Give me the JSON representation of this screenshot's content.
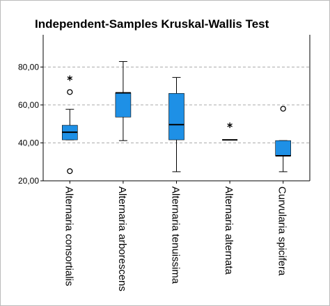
{
  "chart_data": {
    "type": "box",
    "title": "Independent-Samples Kruskal-Wallis Test",
    "categories": [
      "Alternaria consortialis",
      "Alternaria arborescens",
      "Alternaria tenuissima",
      "Alternaria alternata",
      "Curvularia spicifera"
    ],
    "boxes": [
      {
        "min": 41.6,
        "q1": 41.6,
        "median": 45.6,
        "q3": 49.3,
        "max": 57.7,
        "outliers": [
          66.8,
          25.1
        ],
        "extremes": [
          74.1
        ]
      },
      {
        "min": 41.2,
        "q1": 53.6,
        "median": 66.4,
        "q3": 66.4,
        "max": 82.9,
        "outliers": [],
        "extremes": []
      },
      {
        "min": 24.8,
        "q1": 41.6,
        "median": 49.6,
        "q3": 66.1,
        "max": 74.5,
        "outliers": [],
        "extremes": []
      },
      {
        "min": 41.6,
        "q1": 41.6,
        "median": 41.6,
        "q3": 41.6,
        "max": 41.6,
        "outliers": [],
        "extremes": [
          49.3
        ]
      },
      {
        "min": 24.8,
        "q1": 33.2,
        "median": 33.2,
        "q3": 41.2,
        "max": 41.2,
        "outliers": [
          58.0
        ],
        "extremes": []
      }
    ],
    "color": "#1e90e6",
    "ylim": [
      20,
      97
    ],
    "yticks": [
      {
        "value": 20,
        "label": "20,00"
      },
      {
        "value": 40,
        "label": "40,00"
      },
      {
        "value": 60,
        "label": "60,00"
      },
      {
        "value": 80,
        "label": "80,00"
      }
    ],
    "grid": true
  }
}
